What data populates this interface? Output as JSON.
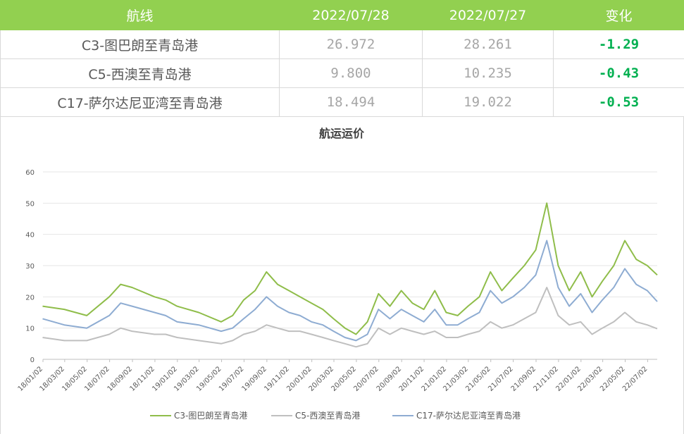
{
  "table": {
    "headers": [
      "航线",
      "2022/07/28",
      "2022/07/27",
      "变化"
    ],
    "rows": [
      {
        "route": "C3-图巴朗至青岛港",
        "v1": "26.972",
        "v2": "28.261",
        "change": "-1.29"
      },
      {
        "route": "C5-西澳至青岛港",
        "v1": "9.800",
        "v2": "10.235",
        "change": "-0.43"
      },
      {
        "route": "C17-萨尔达尼亚湾至青岛港",
        "v1": "18.494",
        "v2": "19.022",
        "change": "-0.53"
      }
    ]
  },
  "colors": {
    "header_bg": "#92d050",
    "c3": "#8fbd4a",
    "c5": "#bfbfbf",
    "c17": "#8eacd2",
    "change": "#00b050"
  },
  "chart_data": {
    "type": "line",
    "title": "航运运价",
    "xlabel": "",
    "ylabel": "",
    "ylim": [
      0,
      60
    ],
    "yticks": [
      0,
      10,
      20,
      30,
      40,
      50,
      60
    ],
    "grid": true,
    "legend_position": "bottom",
    "x_tick_labels": [
      "18/01/02",
      "18/03/02",
      "18/05/02",
      "18/07/02",
      "18/09/02",
      "18/11/02",
      "19/01/02",
      "19/03/02",
      "19/05/02",
      "19/07/02",
      "19/09/02",
      "19/11/02",
      "20/01/02",
      "20/03/02",
      "20/05/02",
      "20/07/02",
      "20/09/02",
      "20/11/02",
      "21/01/02",
      "21/03/02",
      "21/05/02",
      "21/07/02",
      "21/09/02",
      "21/11/02",
      "22/01/02",
      "22/03/02",
      "22/05/02",
      "22/07/02"
    ],
    "x": [
      "2018-01",
      "2018-03",
      "2018-05",
      "2018-07",
      "2018-08",
      "2018-09",
      "2018-11",
      "2018-12",
      "2019-01",
      "2019-03",
      "2019-05",
      "2019-06",
      "2019-07",
      "2019-08",
      "2019-09",
      "2019-10",
      "2019-11",
      "2019-12",
      "2020-01",
      "2020-02",
      "2020-03",
      "2020-04",
      "2020-05",
      "2020-06",
      "2020-07",
      "2020-08",
      "2020-09",
      "2020-10",
      "2020-11",
      "2020-12",
      "2021-01",
      "2021-02",
      "2021-03",
      "2021-04",
      "2021-05",
      "2021-06",
      "2021-07",
      "2021-08",
      "2021-09",
      "2021-10",
      "2021-11",
      "2021-12",
      "2022-01",
      "2022-02",
      "2022-03",
      "2022-04",
      "2022-05",
      "2022-06",
      "2022-07",
      "2022-07-28"
    ],
    "series": [
      {
        "name": "C3-图巴朗至青岛港",
        "values": [
          17,
          16,
          14,
          20,
          24,
          23,
          20,
          19,
          17,
          15,
          12,
          14,
          19,
          22,
          28,
          24,
          22,
          20,
          18,
          16,
          13,
          10,
          8,
          12,
          21,
          17,
          22,
          18,
          16,
          22,
          15,
          14,
          17,
          20,
          28,
          22,
          26,
          30,
          35,
          50,
          30,
          22,
          28,
          20,
          25,
          30,
          38,
          32,
          30,
          27
        ]
      },
      {
        "name": "C5-西澳至青岛港",
        "values": [
          7,
          6,
          6,
          8,
          10,
          9,
          8,
          8,
          7,
          6,
          5,
          6,
          8,
          9,
          11,
          10,
          9,
          9,
          8,
          7,
          6,
          5,
          4,
          5,
          10,
          8,
          10,
          9,
          8,
          9,
          7,
          7,
          8,
          9,
          12,
          10,
          11,
          13,
          15,
          23,
          14,
          11,
          12,
          8,
          10,
          12,
          15,
          12,
          11,
          9.8
        ]
      },
      {
        "name": "C17-萨尔达尼亚湾至青岛港",
        "values": [
          13,
          11,
          10,
          14,
          18,
          17,
          15,
          14,
          12,
          11,
          9,
          10,
          13,
          16,
          20,
          17,
          15,
          14,
          12,
          11,
          9,
          7,
          6,
          8,
          16,
          13,
          16,
          14,
          12,
          16,
          11,
          11,
          13,
          15,
          22,
          18,
          20,
          23,
          27,
          38,
          23,
          17,
          21,
          15,
          19,
          23,
          29,
          24,
          22,
          18.5
        ]
      }
    ]
  }
}
